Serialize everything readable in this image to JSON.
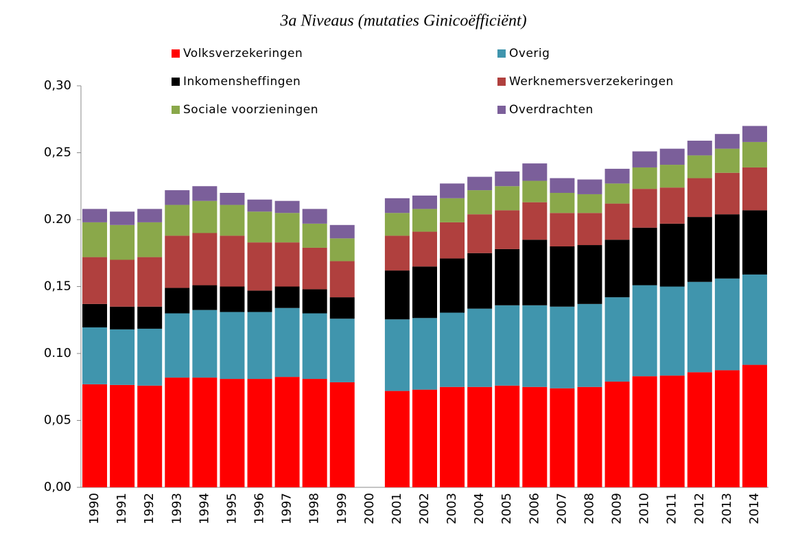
{
  "chart_data": {
    "type": "stacked_bar",
    "title": "3a Niveaus (mutaties Ginicoëfficiënt)",
    "categories": [
      "1990",
      "1991",
      "1992",
      "1993",
      "1994",
      "1995",
      "1996",
      "1997",
      "1998",
      "1999",
      "2000",
      "2001",
      "2002",
      "2003",
      "2004",
      "2005",
      "2006",
      "2007",
      "2008",
      "2009",
      "2010",
      "2011",
      "2012",
      "2013",
      "2014"
    ],
    "series": [
      {
        "name": "Volksverzekeringen",
        "color": "#ff0000",
        "values": [
          0.077,
          0.0765,
          0.076,
          0.082,
          0.082,
          0.081,
          0.081,
          0.0825,
          0.081,
          0.0785,
          null,
          0.072,
          0.073,
          0.075,
          0.075,
          0.076,
          0.075,
          0.074,
          0.075,
          0.079,
          0.083,
          0.0835,
          0.086,
          0.0875,
          0.0915
        ]
      },
      {
        "name": "Overig",
        "color": "#4095ad",
        "values": [
          0.0425,
          0.0415,
          0.0425,
          0.048,
          0.0505,
          0.05,
          0.05,
          0.0515,
          0.049,
          0.0475,
          null,
          0.0535,
          0.0535,
          0.0555,
          0.0585,
          0.06,
          0.061,
          0.061,
          0.062,
          0.063,
          0.068,
          0.0665,
          0.0675,
          0.0685,
          0.0675
        ]
      },
      {
        "name": "Inkomensheffingen",
        "color": "#000000",
        "values": [
          0.0175,
          0.017,
          0.0165,
          0.019,
          0.0185,
          0.019,
          0.016,
          0.016,
          0.018,
          0.016,
          null,
          0.0365,
          0.0385,
          0.0405,
          0.0415,
          0.042,
          0.049,
          0.045,
          0.044,
          0.043,
          0.043,
          0.047,
          0.0485,
          0.048,
          0.048
        ]
      },
      {
        "name": "Werknemersverzekeringen",
        "color": "#b0403e",
        "values": [
          0.035,
          0.035,
          0.037,
          0.039,
          0.039,
          0.038,
          0.036,
          0.033,
          0.031,
          0.027,
          null,
          0.026,
          0.026,
          0.027,
          0.029,
          0.029,
          0.028,
          0.025,
          0.024,
          0.027,
          0.029,
          0.027,
          0.029,
          0.031,
          0.032
        ]
      },
      {
        "name": "Sociale voorzieningen",
        "color": "#8aa84a",
        "values": [
          0.026,
          0.026,
          0.026,
          0.023,
          0.024,
          0.023,
          0.023,
          0.022,
          0.018,
          0.017,
          null,
          0.017,
          0.017,
          0.018,
          0.018,
          0.018,
          0.016,
          0.015,
          0.014,
          0.015,
          0.016,
          0.017,
          0.017,
          0.018,
          0.019
        ]
      },
      {
        "name": "Overdrachten",
        "color": "#7b5f9a",
        "values": [
          0.01,
          0.01,
          0.01,
          0.011,
          0.011,
          0.009,
          0.009,
          0.009,
          0.011,
          0.01,
          null,
          0.011,
          0.01,
          0.011,
          0.01,
          0.011,
          0.013,
          0.011,
          0.011,
          0.011,
          0.012,
          0.012,
          0.011,
          0.011,
          0.012
        ]
      }
    ],
    "ylim": [
      0,
      0.3
    ],
    "yticks": [
      {
        "value": 0,
        "label": "0,00"
      },
      {
        "value": 0.05,
        "label": "0,05"
      },
      {
        "value": 0.1,
        "label": "0.10"
      },
      {
        "value": 0.15,
        "label": "0,15"
      },
      {
        "value": 0.2,
        "label": "0.20"
      },
      {
        "value": 0.25,
        "label": "0,25"
      },
      {
        "value": 0.3,
        "label": "0,30"
      }
    ]
  }
}
